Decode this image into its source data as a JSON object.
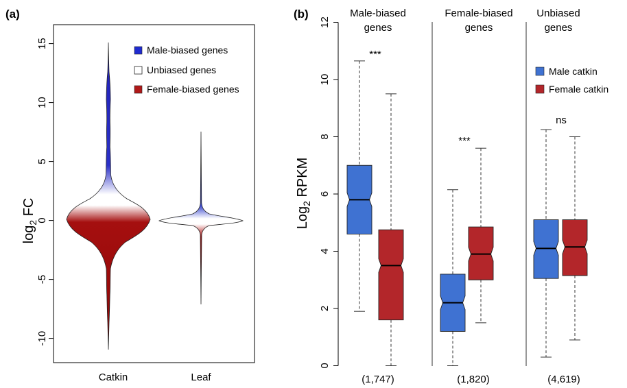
{
  "panels": {
    "a_label": "(a)",
    "b_label": "(b)"
  },
  "chart_data": [
    {
      "type": "violin",
      "ylabel_base": "log",
      "ylabel_sub": "2",
      "ylabel_rest": " FC",
      "ylim": [
        -11.5,
        16
      ],
      "yticks": [
        15,
        10,
        5,
        0,
        -5,
        -10
      ],
      "categories": [
        "Catkin",
        "Leaf"
      ],
      "violins": [
        {
          "name": "Catkin",
          "min": -10.8,
          "max": 14.8
        },
        {
          "name": "Leaf",
          "min": -7.1,
          "max": 7.4
        }
      ],
      "legend": [
        {
          "label": "Male-biased genes",
          "color": "#1f2bd0"
        },
        {
          "label": "Unbiased genes",
          "color": "#ffffff"
        },
        {
          "label": "Female-biased genes",
          "color": "#b01818"
        }
      ],
      "colors": {
        "male": "#1f2bd0",
        "unbiased": "#ffffff",
        "female": "#a50f0f"
      }
    },
    {
      "type": "boxplot",
      "ylabel_base": "Log",
      "ylabel_sub": "2",
      "ylabel_rest": "  RPKM",
      "ylim": [
        0,
        12
      ],
      "yticks": [
        0,
        2,
        4,
        6,
        8,
        10,
        12
      ],
      "groups": [
        {
          "title_line1": "Male-biased",
          "title_line2": "genes",
          "count": "(1,747)",
          "significance": "***"
        },
        {
          "title_line1": "Female-biased",
          "title_line2": "genes",
          "count": "(1,820)",
          "significance": "***"
        },
        {
          "title_line1": "Unbiased",
          "title_line2": "genes",
          "count": "(4,619)",
          "significance": "ns"
        }
      ],
      "series": [
        {
          "name": "Male catkin",
          "color": "#3f72d2",
          "boxes": [
            {
              "min": 1.9,
              "q1": 4.6,
              "median": 5.8,
              "q3": 7.0,
              "max": 10.65
            },
            {
              "min": 0.0,
              "q1": 1.2,
              "median": 2.2,
              "q3": 3.2,
              "max": 6.15
            },
            {
              "min": 0.3,
              "q1": 3.05,
              "median": 4.1,
              "q3": 5.1,
              "max": 8.25
            }
          ]
        },
        {
          "name": "Female catkin",
          "color": "#b3262a",
          "boxes": [
            {
              "min": 0.0,
              "q1": 1.6,
              "median": 3.5,
              "q3": 4.75,
              "max": 9.5
            },
            {
              "min": 1.5,
              "q1": 3.0,
              "median": 3.9,
              "q3": 4.85,
              "max": 7.6
            },
            {
              "min": 0.9,
              "q1": 3.15,
              "median": 4.15,
              "q3": 5.1,
              "max": 8.0
            }
          ]
        }
      ],
      "legend": [
        {
          "label": "Male catkin",
          "color": "#3f72d2"
        },
        {
          "label": "Female catkin",
          "color": "#b3262a"
        }
      ]
    }
  ]
}
